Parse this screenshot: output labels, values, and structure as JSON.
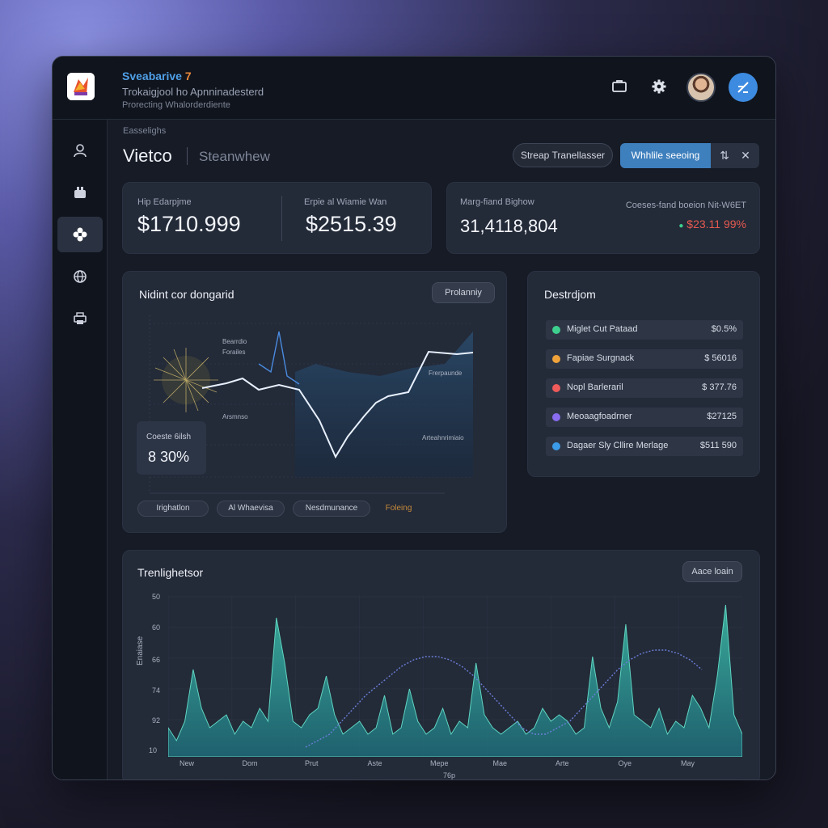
{
  "app": {
    "title": "Sveabarive",
    "version": "7",
    "subtitle": "Trokaigjool ho Apnninadesterd",
    "tagline": "Prorecting Whalorderdiente"
  },
  "header": {
    "breadcrumb": "Easselighs",
    "title": "Vietco",
    "tab": "Steanwhew",
    "secondary_button": "Streap Tranellasser",
    "primary_button": "Whhlile seeoing"
  },
  "stats": {
    "left": [
      {
        "label": "Hip Edarpjme",
        "value": "$1710.999"
      },
      {
        "label": "Erpie al Wiamie Wan",
        "value": "$2515.39"
      }
    ],
    "right": {
      "label": "Marg-fiand Bighow",
      "value": "31,4118,804",
      "change_label": "Coeses-fand boeion Nit-W6ET",
      "change_value": "$23.11 99%"
    }
  },
  "main_chart": {
    "title": "Nidint cor dongarid",
    "button": "Prolanniy",
    "overlay_label": "Coeste 6ilsh",
    "overlay_value": "8 30%",
    "annotations": [
      "Bearrdio",
      "Forailes",
      "Arsmnso",
      "Frerpaunde",
      "Arteahnrimiaio"
    ],
    "chips": [
      "Irighatlon",
      "Al Whaevisa",
      "Nesdmunance",
      "Foleing"
    ]
  },
  "distribution": {
    "title": "Destrdjom",
    "items": [
      {
        "name": "Miglet Cut Pataad",
        "value": "$0.5%",
        "color": "#3ecf8e"
      },
      {
        "name": "Fapiae Surgnack",
        "value": "$ 56016",
        "color": "#f0a23a"
      },
      {
        "name": "Nopl Barleraril",
        "value": "$ 377.76",
        "color": "#ef5a5a"
      },
      {
        "name": "Meoaagfoadrner",
        "value": "$27125",
        "color": "#8a6cf0"
      },
      {
        "name": "Dagaer Sly Cllire Merlage",
        "value": "$511 590",
        "color": "#3b9be8"
      }
    ]
  },
  "trend_chart": {
    "title": "Trenlighetsor",
    "button": "Aace loain",
    "ylabel": "Enaiase",
    "xlabel": "76p",
    "y_ticks": [
      "50",
      "60",
      "66",
      "74",
      "92",
      "10"
    ],
    "x_ticks": [
      "New",
      "Dom",
      "Prut",
      "Aste",
      "Mepe",
      "Mae",
      "Arte",
      "Oye",
      "May"
    ]
  },
  "chart_data": {
    "type": "area",
    "x": [
      0,
      1,
      2,
      3,
      4,
      5,
      6,
      7,
      8,
      9,
      10,
      11,
      12,
      13,
      14,
      15,
      16,
      17,
      18,
      19,
      20,
      21,
      22,
      23,
      24,
      25,
      26,
      27,
      28,
      29,
      30,
      31,
      32,
      33,
      34,
      35,
      36,
      37,
      38,
      39,
      40,
      41,
      42,
      43,
      44,
      45,
      46,
      47,
      48,
      49,
      50,
      51,
      52,
      53,
      54,
      55,
      56,
      57,
      58,
      59,
      60,
      61,
      62,
      63,
      64,
      65,
      66,
      67,
      68,
      69
    ],
    "series": [
      {
        "values": [
          64,
          60,
          66,
          82,
          70,
          64,
          66,
          68,
          62,
          66,
          64,
          70,
          66,
          98,
          84,
          66,
          64,
          68,
          70,
          80,
          68,
          62,
          64,
          66,
          62,
          64,
          74,
          62,
          64,
          76,
          66,
          62,
          64,
          70,
          62,
          66,
          64,
          84,
          68,
          64,
          62,
          64,
          66,
          62,
          64,
          70,
          66,
          68,
          66,
          62,
          64,
          86,
          70,
          64,
          72,
          96,
          68,
          66,
          64,
          70,
          62,
          66,
          64,
          74,
          70,
          64,
          80,
          102,
          68,
          62
        ]
      }
    ],
    "curve_series": [
      {
        "values": [
          58,
          60,
          62,
          66,
          70,
          74,
          77,
          80,
          83,
          85,
          86,
          86,
          85,
          83,
          80,
          76,
          72,
          68,
          64,
          62,
          62,
          64,
          66,
          70,
          74,
          78,
          82,
          85,
          87,
          88,
          88,
          87,
          85,
          82
        ]
      }
    ],
    "ylim": [
      55,
      105
    ]
  }
}
